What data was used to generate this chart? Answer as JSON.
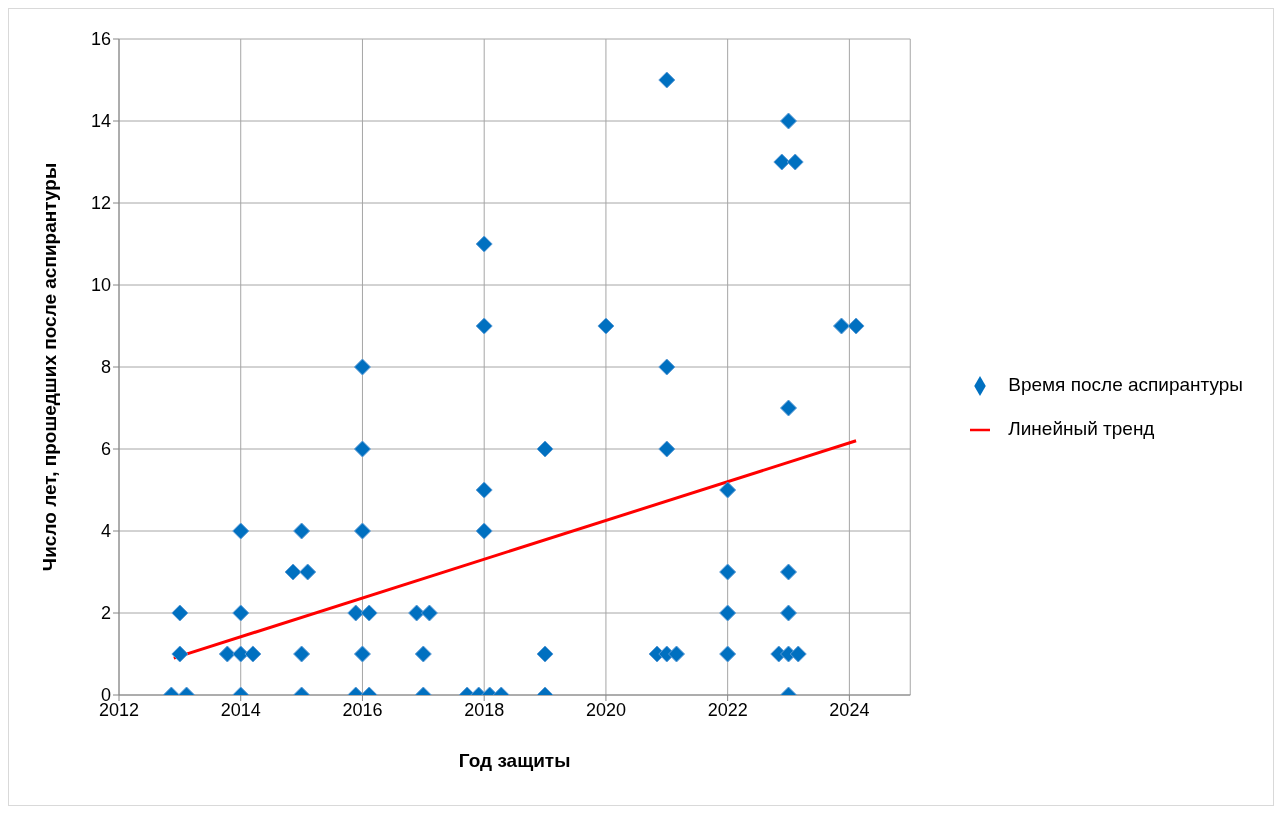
{
  "chart_data": {
    "type": "scatter",
    "xlabel": "Год защиты",
    "ylabel": "Число лет, прошедших после аспирантуры",
    "xlim": [
      2012,
      2025
    ],
    "xticks": [
      2012,
      2014,
      2016,
      2018,
      2020,
      2022,
      2024
    ],
    "ylim": [
      0,
      16
    ],
    "yticks": [
      0,
      2,
      4,
      6,
      8,
      10,
      12,
      14,
      16
    ],
    "grid": true,
    "legend": "right",
    "marker": "diamond",
    "series": [
      {
        "name": "Время после аспирантуры",
        "color": "#0070c0",
        "x": [
          2013,
          2013,
          2012.86,
          2013.11,
          2014,
          2014,
          2013.78,
          2014,
          2014.2,
          2014,
          2015,
          2014.86,
          2015.1,
          2015,
          2015,
          2016,
          2016,
          2016,
          2015.89,
          2016.11,
          2016,
          2015.89,
          2016.11,
          2016.89,
          2017.1,
          2017,
          2017,
          2018,
          2018,
          2018,
          2018,
          2017.72,
          2017.91,
          2018.09,
          2018.28,
          2019,
          2019,
          2019,
          2020,
          2021,
          2021,
          2021,
          2020.84,
          2021,
          2021.16,
          2022,
          2022,
          2022,
          2022,
          2023,
          2022.89,
          2023.11,
          2023,
          2023,
          2023,
          2022.84,
          2023,
          2023.16,
          2023,
          2023.87,
          2024.11
        ],
        "values": [
          2,
          1,
          0,
          0,
          4,
          2,
          1,
          1,
          1,
          0,
          4,
          3,
          3,
          1,
          0,
          8,
          6,
          4,
          2,
          2,
          1,
          0,
          0,
          2,
          2,
          1,
          0,
          11,
          9,
          5,
          4,
          0,
          0,
          0,
          0,
          6,
          1,
          0,
          9,
          15,
          8,
          6,
          1,
          1,
          1,
          5,
          3,
          2,
          1,
          14,
          13,
          13,
          7,
          3,
          2,
          1,
          1,
          1,
          0,
          9,
          9
        ]
      },
      {
        "name": "Линейный тренд",
        "type": "line",
        "color": "#ff0000",
        "line_style": "solid",
        "marker": "none",
        "x": [
          2012.9,
          2024.11
        ],
        "values": [
          0.9,
          6.2
        ]
      }
    ]
  }
}
